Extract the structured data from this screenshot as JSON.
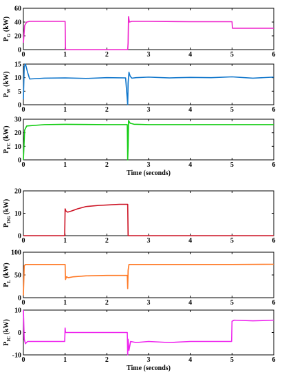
{
  "chart_data": [
    {
      "type": "line",
      "ylabel_main": "P",
      "ylabel_sub": "G",
      "ylabel_unit": "(kW)",
      "xlim": [
        0,
        6
      ],
      "ylim": [
        0,
        60
      ],
      "yticks": [
        0,
        20,
        40,
        60
      ],
      "xticks": [
        0,
        1,
        2,
        3,
        4,
        5,
        6
      ],
      "color": "#ee22cc",
      "series": [
        {
          "x": [
            0,
            0.03,
            0.08,
            0.15,
            1.0,
            1.01,
            2.5,
            2.51,
            2.52,
            2.54,
            2.6,
            3,
            4,
            4.5,
            5.0,
            5.01,
            5.05,
            6
          ],
          "y": [
            10,
            35,
            40,
            41,
            41,
            0,
            0,
            10,
            48,
            40,
            41,
            41,
            40.5,
            40.5,
            40.5,
            31,
            31,
            31
          ]
        }
      ],
      "xlabel": ""
    },
    {
      "type": "line",
      "ylabel_main": "P",
      "ylabel_sub": "W",
      "ylabel_unit": "(kW)",
      "xlim": [
        0,
        6
      ],
      "ylim": [
        0,
        15
      ],
      "yticks": [
        0,
        5,
        10,
        15
      ],
      "xticks": [
        0,
        1,
        2,
        3,
        4,
        5,
        6
      ],
      "color": "#1177cc",
      "series": [
        {
          "x": [
            0,
            0.02,
            0.05,
            0.1,
            0.15,
            0.5,
            1,
            1.5,
            2,
            2.45,
            2.5,
            2.51,
            2.53,
            2.56,
            2.6,
            2.7,
            3,
            3.5,
            4,
            4.5,
            5,
            5.5,
            6
          ],
          "y": [
            2,
            14,
            15,
            12,
            9.5,
            9.8,
            9.9,
            9.7,
            10,
            9.9,
            0,
            8,
            12,
            10.5,
            9.8,
            10,
            10.2,
            9.9,
            10.1,
            10,
            10.3,
            9.8,
            10.2
          ]
        }
      ],
      "xlabel": ""
    },
    {
      "type": "line",
      "ylabel_main": "P",
      "ylabel_sub": "FC",
      "ylabel_unit": "(kW)",
      "xlim": [
        0,
        6
      ],
      "ylim": [
        0,
        30
      ],
      "yticks": [
        0,
        10,
        20,
        30
      ],
      "xticks": [
        0,
        1,
        2,
        3,
        4,
        5,
        6
      ],
      "color": "#11cc11",
      "series": [
        {
          "x": [
            0,
            0.03,
            0.08,
            0.5,
            1,
            2,
            2.49,
            2.5,
            2.51,
            2.52,
            2.56,
            2.65,
            3,
            4,
            5,
            6
          ],
          "y": [
            0,
            22,
            25,
            26,
            26.2,
            26,
            26,
            0,
            10,
            29,
            27,
            26.3,
            26,
            26,
            26,
            26
          ]
        }
      ],
      "xlabel": "Time (seconds)"
    },
    {
      "type": "line",
      "ylabel_main": "P",
      "ylabel_sub": "DG",
      "ylabel_unit": "(kW)",
      "xlim": [
        0,
        6
      ],
      "ylim": [
        0,
        20
      ],
      "yticks": [
        0,
        10,
        20
      ],
      "xticks": [
        0,
        1,
        2,
        3,
        4,
        5,
        6
      ],
      "color": "#cc1122",
      "series": [
        {
          "x": [
            0,
            0.99,
            1.0,
            1.02,
            1.06,
            1.15,
            1.3,
            1.5,
            1.8,
            2.1,
            2.3,
            2.49,
            2.5,
            2.51,
            6
          ],
          "y": [
            0,
            0,
            12,
            11,
            10.5,
            11,
            12,
            13,
            13.5,
            13.8,
            14,
            14,
            14,
            0,
            0
          ]
        }
      ],
      "xlabel": ""
    },
    {
      "type": "line",
      "ylabel_main": "P",
      "ylabel_sub": "L",
      "ylabel_unit": "(kW)",
      "xlim": [
        0,
        6
      ],
      "ylim": [
        0,
        100
      ],
      "yticks": [
        0,
        50,
        100
      ],
      "xticks": [
        0,
        1,
        2,
        3,
        4,
        5,
        6
      ],
      "color": "#ff7722",
      "series": [
        {
          "x": [
            0,
            0.02,
            0.05,
            1.0,
            1.01,
            1.03,
            1.08,
            1.2,
            1.5,
            2,
            2.49,
            2.5,
            2.51,
            2.53,
            2.56,
            3,
            4,
            5,
            6
          ],
          "y": [
            5,
            70,
            73,
            73,
            40,
            46,
            44,
            46,
            48,
            49,
            49,
            20,
            60,
            73,
            73,
            73,
            73,
            73,
            73.5
          ]
        }
      ],
      "xlabel": ""
    },
    {
      "type": "line",
      "ylabel_main": "P",
      "ylabel_sub": "IC",
      "ylabel_unit": "(kW)",
      "xlim": [
        0,
        6
      ],
      "ylim": [
        -10,
        10
      ],
      "yticks": [
        -10,
        0,
        10
      ],
      "xticks": [
        0,
        1,
        2,
        3,
        4,
        5,
        6
      ],
      "color": "#ee22ee",
      "series": [
        {
          "x": [
            0,
            0.02,
            0.05,
            0.1,
            0.5,
            0.99,
            1.0,
            1.01,
            1.04,
            1.5,
            2,
            2.49,
            2.5,
            2.51,
            2.53,
            2.57,
            2.7,
            3,
            3.5,
            4,
            4.5,
            4.99,
            5.0,
            5.05,
            5.5,
            6
          ],
          "y": [
            10,
            -3,
            -5,
            -4,
            -4,
            -4,
            2,
            0,
            0,
            0,
            0,
            0,
            -10,
            -3,
            -8,
            -4,
            -4.5,
            -4,
            -4.5,
            -4,
            -4,
            -4,
            5,
            5.5,
            5.2,
            5.5
          ]
        }
      ],
      "xlabel": "Time (seconds)"
    }
  ]
}
